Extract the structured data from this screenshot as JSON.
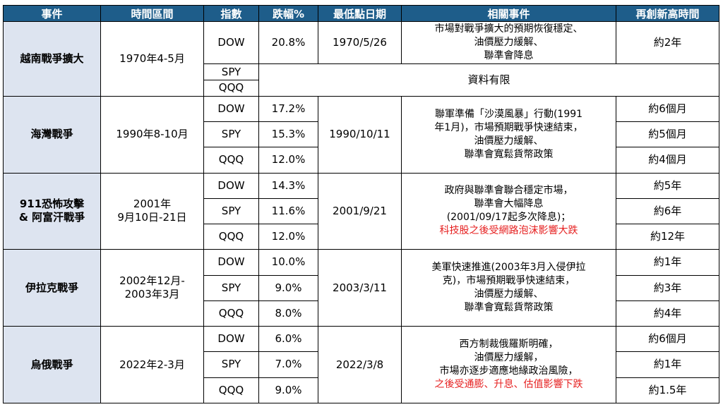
{
  "headers": [
    "事件",
    "時間區間",
    "指數",
    "跌幅%",
    "最低點日期",
    "相關事件",
    "再創新高時間"
  ],
  "rows": [
    {
      "event": "越南戰爭擴大",
      "period": [
        "1970年4-5月"
      ],
      "low_date": "1970/5/26",
      "notes": [
        {
          "text": "市場對戰爭擴大的預期恢復穩定、",
          "red": false
        },
        {
          "text": "油價壓力緩解、",
          "red": false
        },
        {
          "text": "聯準會降息",
          "red": false
        }
      ],
      "limited": "資料有限",
      "indices": [
        {
          "name": "DOW",
          "drop": "20.8%",
          "recovery": "約2年"
        },
        {
          "name": "SPY",
          "drop": "",
          "recovery": ""
        },
        {
          "name": "QQQ",
          "drop": "",
          "recovery": ""
        }
      ]
    },
    {
      "event": "海灣戰爭",
      "period": [
        "1990年8-10月"
      ],
      "low_date": "1990/10/11",
      "notes": [
        {
          "text": "聯軍準備「沙漠風暴」行動(1991",
          "red": false
        },
        {
          "text": "年1月)，市場預期戰爭快速結束，",
          "red": false
        },
        {
          "text": "油價壓力緩解、",
          "red": false
        },
        {
          "text": "聯準會寬鬆貨幣政策",
          "red": false
        }
      ],
      "indices": [
        {
          "name": "DOW",
          "drop": "17.2%",
          "recovery": "約6個月"
        },
        {
          "name": "SPY",
          "drop": "15.3%",
          "recovery": "約5個月"
        },
        {
          "name": "QQQ",
          "drop": "12.0%",
          "recovery": "約4個月"
        }
      ]
    },
    {
      "event": "911恐怖攻擊 & 阿富汗戰爭",
      "event_lines": [
        "911恐怖攻擊",
        "& 阿富汗戰爭"
      ],
      "period": [
        "2001年",
        "9月10日-21日"
      ],
      "low_date": "2001/9/21",
      "notes": [
        {
          "text": "政府與聯準會聯合穩定市場，",
          "red": false
        },
        {
          "text": "聯準會大幅降息",
          "red": false
        },
        {
          "text": "(2001/09/17起多次降息)；",
          "red": false
        },
        {
          "text": "科技股之後受網路泡沫影響大跌",
          "red": true
        }
      ],
      "indices": [
        {
          "name": "DOW",
          "drop": "14.3%",
          "recovery": "約5年"
        },
        {
          "name": "SPY",
          "drop": "11.6%",
          "recovery": "約6年"
        },
        {
          "name": "QQQ",
          "drop": "12.0%",
          "recovery": "約12年"
        }
      ]
    },
    {
      "event": "伊拉克戰爭",
      "period": [
        "2002年12月-",
        "2003年3月"
      ],
      "low_date": "2003/3/11",
      "notes": [
        {
          "text": "美軍快速推進(2003年3月入侵伊拉",
          "red": false
        },
        {
          "text": "克)，市場預期戰爭快速結束，",
          "red": false
        },
        {
          "text": "油價壓力緩解、",
          "red": false
        },
        {
          "text": "聯準會寬鬆貨幣政策",
          "red": false
        }
      ],
      "indices": [
        {
          "name": "DOW",
          "drop": "10.0%",
          "recovery": "約1年"
        },
        {
          "name": "SPY",
          "drop": "9.0%",
          "recovery": "約3年"
        },
        {
          "name": "QQQ",
          "drop": "8.0%",
          "recovery": "約4年"
        }
      ]
    },
    {
      "event": "烏俄戰爭",
      "period": [
        "2022年2-3月"
      ],
      "low_date": "2022/3/8",
      "notes": [
        {
          "text": "西方制裁俄羅斯明確，",
          "red": false
        },
        {
          "text": "油價壓力緩解，",
          "red": false
        },
        {
          "text": "市場亦逐步適應地緣政治風險，",
          "red": false
        },
        {
          "text": "之後受通膨、升息、估值影響下跌",
          "red": true
        }
      ],
      "indices": [
        {
          "name": "DOW",
          "drop": "6.0%",
          "recovery": "約6個月"
        },
        {
          "name": "SPY",
          "drop": "7.0%",
          "recovery": "約1年"
        },
        {
          "name": "QQQ",
          "drop": "9.0%",
          "recovery": "約1.5年"
        }
      ]
    }
  ]
}
